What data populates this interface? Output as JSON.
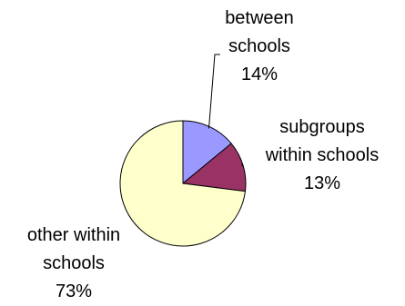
{
  "chart_data": {
    "type": "pie",
    "start_angle_deg": 90,
    "direction": "clockwise",
    "slices": [
      {
        "label_lines": [
          "between",
          "schools"
        ],
        "percent_label": "14%",
        "value": 14,
        "color": "#9999FF"
      },
      {
        "label_lines": [
          "subgroups",
          "within schools"
        ],
        "percent_label": "13%",
        "value": 13,
        "color": "#993366"
      },
      {
        "label_lines": [
          "other within",
          "schools"
        ],
        "percent_label": "73%",
        "value": 73,
        "color": "#FFFFCC"
      }
    ],
    "stroke_color": "#000000"
  }
}
